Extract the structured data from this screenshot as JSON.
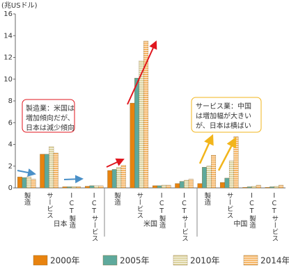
{
  "chart_data": {
    "type": "bar",
    "y_label": "(兆USドル)",
    "groups": [
      "日本",
      "米国",
      "中国"
    ],
    "categories": [
      "製造",
      "サービス",
      "ICT製造",
      "ICTサービス",
      "製造",
      "サービス",
      "ICT製造",
      "ICTサービス",
      "製造",
      "サービス",
      "ICT製造",
      "ICTサービス"
    ],
    "series": [
      {
        "name": "2000年",
        "color": "#e8830f",
        "hatch": false,
        "values": [
          1.0,
          3.1,
          0.1,
          0.15,
          1.6,
          7.8,
          0.2,
          0.4,
          0.4,
          0.5,
          0.05,
          0.05
        ]
      },
      {
        "name": "2005年",
        "color": "#5ea99c",
        "hatch": false,
        "values": [
          0.95,
          3.1,
          0.1,
          0.2,
          1.7,
          10.1,
          0.2,
          0.6,
          1.9,
          0.9,
          0.1,
          0.1
        ]
      },
      {
        "name": "2010年",
        "color": "#dcd39f",
        "hatch": true,
        "values": [
          1.0,
          3.8,
          0.1,
          0.2,
          1.9,
          11.7,
          0.25,
          0.7,
          2.0,
          2.5,
          0.15,
          0.15
        ]
      },
      {
        "name": "2014年",
        "color": "#f6b667",
        "hatch": true,
        "values": [
          0.8,
          3.2,
          0.1,
          0.2,
          2.1,
          13.5,
          0.25,
          0.8,
          3.0,
          4.7,
          0.25,
          0.25
        ]
      }
    ],
    "ylim": [
      0,
      16
    ],
    "yticks": [
      0,
      2,
      4,
      6,
      8,
      10,
      12,
      14,
      16
    ],
    "grid": false,
    "annotations": [
      {
        "lines": [
          "製造業：米国は",
          "増加傾向だが、",
          "日本は減少傾向"
        ]
      },
      {
        "lines": [
          "サービス業：中国",
          "は増加幅が大きい",
          "が、日本は横ばい"
        ]
      }
    ]
  }
}
